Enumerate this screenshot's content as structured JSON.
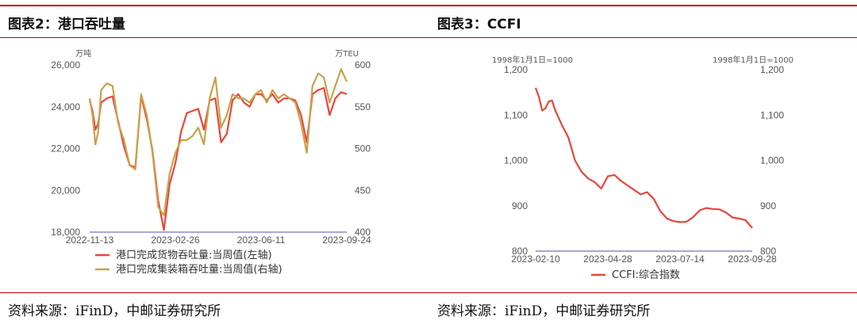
{
  "panels": {
    "left_title": "图表2：港口吞吐量",
    "right_title": "图表3：CCFI",
    "left_source": "资料来源：iFinD，中邮证券研究所",
    "right_source": "资料来源：iFinD，中邮证券研究所"
  },
  "colors": {
    "accent": "#c00000",
    "red_series": "#e8463c",
    "gold_series": "#c9a14a",
    "axis_line": "#8a8ac0"
  },
  "chart_data": [
    {
      "type": "line",
      "title": "图表2：港口吞吐量",
      "left_unit": "万吨",
      "right_unit": "万TEU",
      "x_ticks": [
        "2022-11-13",
        "2023-02-26",
        "2023-06-11",
        "2023-09-24"
      ],
      "y_left": {
        "min": 18000,
        "max": 26000,
        "ticks": [
          "18,000",
          "20,000",
          "22,000",
          "24,000",
          "26,000"
        ]
      },
      "y_right": {
        "min": 400,
        "max": 600,
        "ticks": [
          "400",
          "450",
          "500",
          "550",
          "600"
        ]
      },
      "x_range": [
        0,
        45
      ],
      "series": [
        {
          "name": "港口完成货物吞吐量:当周值(左轴)",
          "axis": "left",
          "x": [
            0,
            0.5,
            1,
            1.5,
            2,
            3,
            4,
            5,
            6,
            7,
            8,
            9,
            10,
            11,
            12,
            13,
            14,
            15,
            16,
            17,
            18,
            19,
            20,
            21,
            22,
            23,
            24,
            25,
            26,
            27,
            28,
            29,
            30,
            31,
            32,
            33,
            34,
            35,
            36,
            37,
            38,
            39,
            40,
            41,
            42,
            43,
            44,
            45
          ],
          "values": [
            24300,
            23800,
            22900,
            23200,
            24200,
            24400,
            24500,
            23300,
            22100,
            21200,
            21100,
            24500,
            23400,
            21900,
            19500,
            18100,
            20300,
            21300,
            22800,
            23700,
            23800,
            23900,
            22900,
            24300,
            24400,
            22300,
            22700,
            24300,
            24600,
            24200,
            24000,
            24600,
            24600,
            24300,
            24600,
            24200,
            24400,
            24400,
            24300,
            23600,
            22300,
            24600,
            24800,
            24900,
            23600,
            24400,
            24700,
            24600
          ]
        },
        {
          "name": "港口完成集装箱吞吐量:当周值(右轴)",
          "axis": "right",
          "x": [
            0,
            0.5,
            1,
            1.5,
            2,
            3,
            4,
            5,
            6,
            7,
            8,
            9,
            10,
            11,
            12,
            13,
            14,
            15,
            16,
            17,
            18,
            19,
            20,
            21,
            22,
            23,
            24,
            25,
            26,
            27,
            28,
            29,
            30,
            31,
            32,
            33,
            34,
            35,
            36,
            37,
            38,
            39,
            40,
            41,
            42,
            43,
            44,
            45
          ],
          "values": [
            560,
            540,
            505,
            520,
            570,
            578,
            575,
            530,
            510,
            480,
            475,
            565,
            540,
            495,
            430,
            420,
            470,
            495,
            510,
            510,
            515,
            525,
            505,
            560,
            585,
            525,
            540,
            565,
            560,
            560,
            555,
            565,
            570,
            555,
            570,
            560,
            565,
            560,
            555,
            530,
            495,
            575,
            590,
            585,
            555,
            575,
            595,
            580
          ]
        }
      ]
    },
    {
      "type": "line",
      "title": "图表3：CCFI",
      "left_unit": "1998年1月1日=1000",
      "right_unit": "1998年1月1日=1000",
      "x_ticks": [
        "2023-02-10",
        "2023-04-28",
        "2023-07-14",
        "2023-09-28"
      ],
      "y_left": {
        "min": 800,
        "max": 1200,
        "ticks": [
          "800",
          "900",
          "1,000",
          "1,100",
          "1,200"
        ]
      },
      "y_right": {
        "min": 800,
        "max": 1200,
        "ticks": [
          "800",
          "900",
          "1,000",
          "1,100",
          "1,200"
        ]
      },
      "x_range": [
        0,
        33
      ],
      "series": [
        {
          "name": "CCFI:综合指数",
          "axis": "left",
          "x": [
            0,
            0.5,
            1,
            1.5,
            2,
            2.5,
            3,
            4,
            5,
            6,
            7,
            8,
            9,
            10,
            11,
            12,
            13,
            14,
            15,
            16,
            17,
            18,
            19,
            20,
            21,
            22,
            23,
            24,
            25,
            26,
            27,
            28,
            29,
            30,
            31,
            32,
            33
          ],
          "values": [
            1160,
            1140,
            1110,
            1115,
            1130,
            1132,
            1110,
            1078,
            1050,
            1000,
            975,
            960,
            952,
            938,
            965,
            968,
            955,
            945,
            935,
            925,
            930,
            915,
            888,
            872,
            866,
            864,
            865,
            875,
            890,
            895,
            893,
            892,
            885,
            874,
            872,
            868,
            851
          ]
        }
      ]
    }
  ]
}
